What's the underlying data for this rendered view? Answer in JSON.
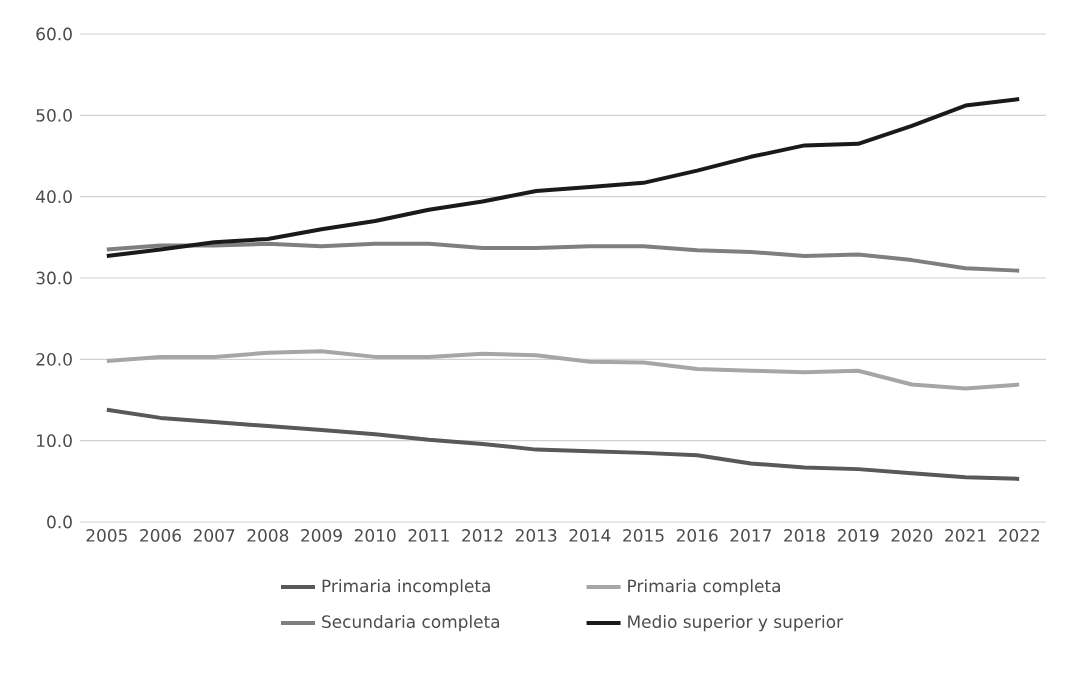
{
  "chart_data": {
    "type": "line",
    "categories": [
      "2005",
      "2006",
      "2007",
      "2008",
      "2009",
      "2010",
      "2011",
      "2012",
      "2013",
      "2014",
      "2015",
      "2016",
      "2017",
      "2018",
      "2019",
      "2020",
      "2021",
      "2022"
    ],
    "series": [
      {
        "name": "Primaria incompleta",
        "color": "#595959",
        "values": [
          13.8,
          12.8,
          12.3,
          11.8,
          11.3,
          10.8,
          10.1,
          9.6,
          8.9,
          8.7,
          8.5,
          8.2,
          7.2,
          6.7,
          6.5,
          6.0,
          5.5,
          5.3
        ]
      },
      {
        "name": "Primaria completa",
        "color": "#a6a6a6",
        "values": [
          19.8,
          20.3,
          20.3,
          20.8,
          21.0,
          20.3,
          20.3,
          20.7,
          20.5,
          19.7,
          19.6,
          18.8,
          18.6,
          18.4,
          18.6,
          16.9,
          16.4,
          16.9
        ]
      },
      {
        "name": "Secundaria completa",
        "color": "#7f7f7f",
        "values": [
          33.5,
          34.0,
          34.0,
          34.2,
          33.9,
          34.2,
          34.2,
          33.7,
          33.7,
          33.9,
          33.9,
          33.4,
          33.2,
          32.7,
          32.9,
          32.2,
          31.2,
          30.9
        ]
      },
      {
        "name": "Medio superior y superior",
        "color": "#1a1a1a",
        "values": [
          32.7,
          33.5,
          34.4,
          34.8,
          36.0,
          37.0,
          38.4,
          39.4,
          40.7,
          41.2,
          41.7,
          43.2,
          44.9,
          46.3,
          46.5,
          48.7,
          51.2,
          52.0
        ]
      }
    ],
    "ylim": [
      0,
      60
    ],
    "yticks": [
      {
        "value": 0,
        "label": "0.0"
      },
      {
        "value": 10,
        "label": "10.0"
      },
      {
        "value": 20,
        "label": "20.0"
      },
      {
        "value": 30,
        "label": "30.0"
      },
      {
        "value": 40,
        "label": "40.0"
      },
      {
        "value": 50,
        "label": "50.0"
      },
      {
        "value": 60,
        "label": "60.0"
      }
    ],
    "grid": "y",
    "legend": "bottom"
  }
}
